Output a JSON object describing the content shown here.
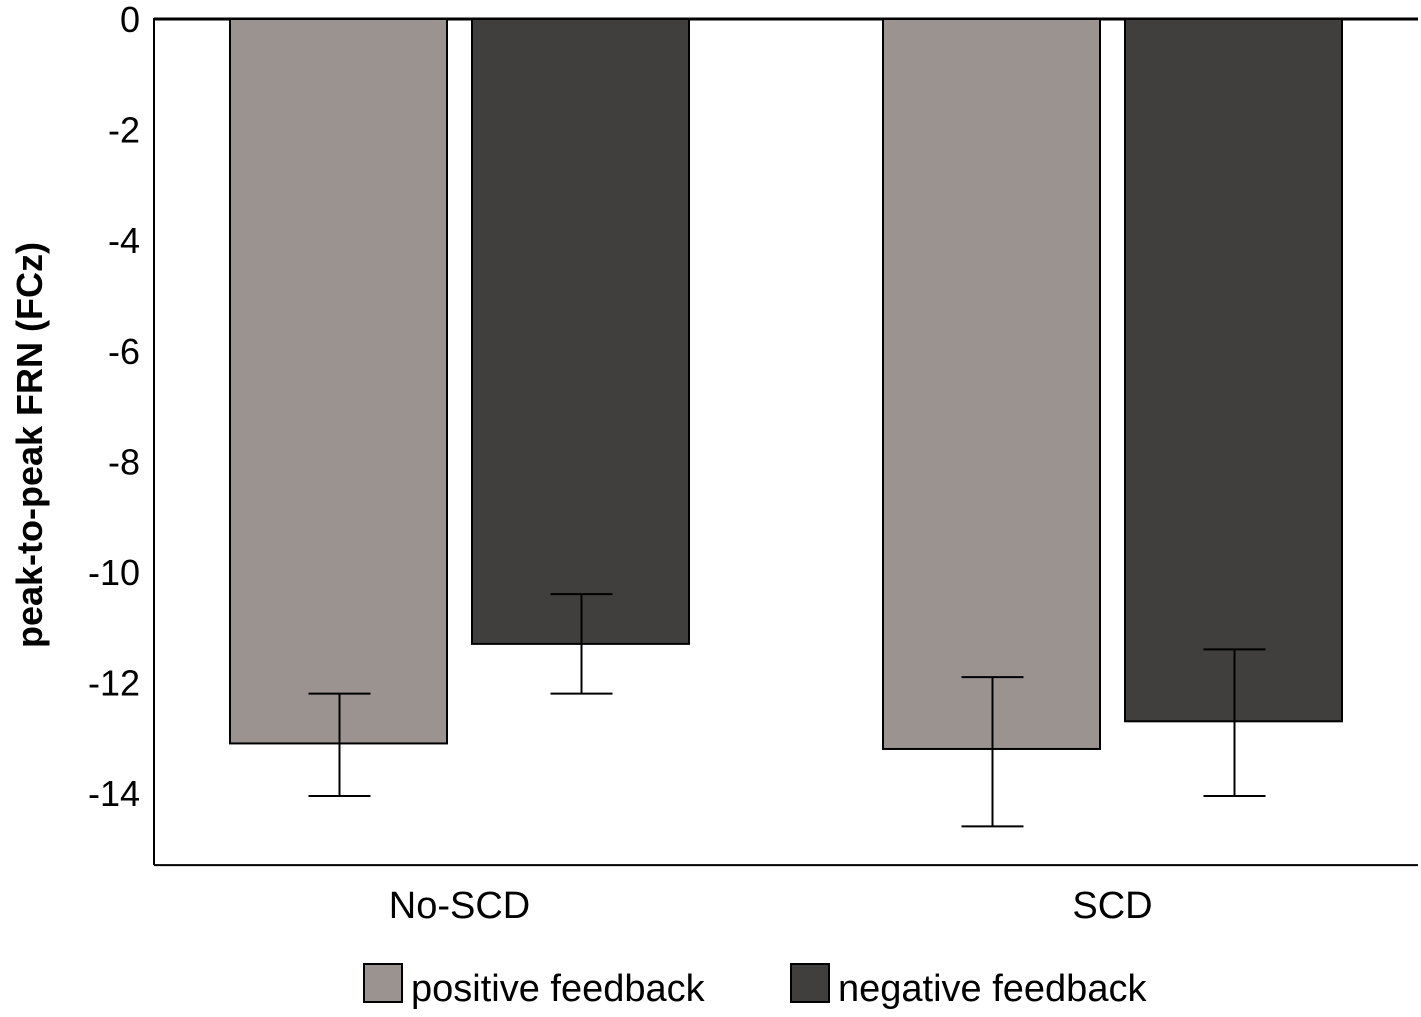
{
  "chart_data": {
    "type": "bar",
    "title": "",
    "xlabel": "",
    "ylabel": "peak-to-peak FRN (FCz)",
    "ylim": [
      -15.3,
      0
    ],
    "yticks": [
      "0",
      "-2",
      "-4",
      "-6",
      "-8",
      "-10",
      "-12",
      "-14"
    ],
    "categories": [
      "No-SCD",
      "SCD"
    ],
    "series": [
      {
        "name": "positive feedback",
        "color": "#9b9390",
        "values": [
          -13.1,
          -13.2
        ],
        "error_low": [
          -14.05,
          -14.6
        ],
        "error_high": [
          -12.2,
          -11.9
        ]
      },
      {
        "name": "negative feedback",
        "color": "#403f3d",
        "values": [
          -11.3,
          -12.7
        ],
        "error_low": [
          -12.2,
          -14.05
        ],
        "error_high": [
          -10.4,
          -11.4
        ]
      }
    ],
    "grid": false,
    "legend_position": "bottom"
  }
}
